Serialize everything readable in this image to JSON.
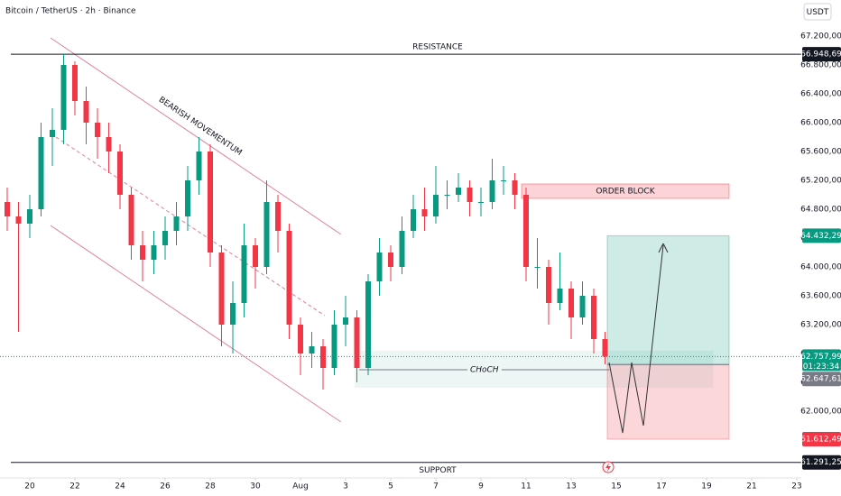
{
  "header": {
    "title": "Bitcoin / TetherUS · 2h · Binance",
    "currency": "USDT"
  },
  "chart_data": {
    "type": "candlestick",
    "x": [
      19,
      19.5,
      20,
      20.5,
      21,
      21.5,
      22,
      22.5,
      23,
      23.5,
      24,
      24.5,
      25,
      25.5,
      26,
      26.5,
      27,
      27.5,
      28,
      28.5,
      29,
      29.5,
      30,
      30.5,
      31,
      31.5,
      32,
      32.5,
      33,
      33.5,
      34,
      34.5,
      35,
      35.5,
      36,
      36.5,
      37,
      37.5,
      38,
      38.5,
      39,
      39.5,
      40,
      40.5,
      41,
      41.5,
      42,
      42.5,
      43,
      43.5,
      44,
      44.5,
      45,
      45.5
    ],
    "open": [
      64900,
      64700,
      64600,
      64800,
      65800,
      65900,
      66800,
      66300,
      66000,
      65800,
      65600,
      65000,
      64300,
      64100,
      64300,
      64500,
      64700,
      65200,
      65600,
      64200,
      63200,
      63500,
      64300,
      64000,
      64900,
      64500,
      63200,
      62800,
      62900,
      62600,
      63200,
      63300,
      62600,
      63800,
      64200,
      64000,
      64500,
      64800,
      64700,
      65000,
      65000,
      65100,
      64900,
      64900,
      65200,
      65200,
      65000,
      64000,
      64000,
      63500,
      63700,
      63300,
      63600,
      63000
    ],
    "high": [
      65100,
      64900,
      65000,
      66000,
      66200,
      66950,
      66850,
      66500,
      66200,
      66000,
      65700,
      65100,
      64500,
      64500,
      64700,
      64900,
      65400,
      65800,
      65700,
      64300,
      63800,
      64600,
      64400,
      65200,
      65000,
      64600,
      63300,
      63100,
      63000,
      63400,
      63600,
      63400,
      63900,
      64400,
      64300,
      64700,
      65000,
      65100,
      65400,
      65200,
      65300,
      65200,
      65100,
      65500,
      65400,
      65300,
      65100,
      64400,
      64100,
      64200,
      63800,
      63800,
      63700,
      63100
    ],
    "low": [
      64500,
      63100,
      64400,
      64700,
      65400,
      65700,
      66100,
      65700,
      65500,
      65300,
      64800,
      64100,
      63800,
      63900,
      64100,
      64300,
      64500,
      65000,
      64000,
      62900,
      62800,
      63300,
      63700,
      63900,
      64200,
      63000,
      62500,
      62600,
      62300,
      62500,
      62900,
      62400,
      62500,
      63600,
      63800,
      63900,
      64400,
      64500,
      64600,
      64800,
      64900,
      64700,
      64700,
      64800,
      65000,
      64800,
      63800,
      63700,
      63200,
      63400,
      63000,
      63200,
      62800,
      62650
    ],
    "close": [
      64700,
      64600,
      64800,
      65800,
      65900,
      66800,
      66300,
      66000,
      65800,
      65600,
      65000,
      64300,
      64100,
      64300,
      64500,
      64700,
      65200,
      65600,
      64200,
      63200,
      63500,
      64300,
      64000,
      64900,
      64500,
      63200,
      62800,
      62900,
      62600,
      63200,
      63300,
      62600,
      63800,
      64200,
      64000,
      64500,
      64800,
      64700,
      65000,
      65000,
      65100,
      64900,
      64900,
      65200,
      65200,
      65000,
      64000,
      64000,
      63500,
      63700,
      63300,
      63600,
      63000,
      62757.99
    ],
    "up_color": "#089981",
    "down_color": "#f23645",
    "xlim": [
      18.68,
      54.2
    ],
    "xticks": [
      20,
      22,
      24,
      26,
      28,
      30,
      {
        "value": 32,
        "label": "Aug"
      },
      {
        "value": 34,
        "label": "3"
      },
      {
        "value": 36,
        "label": "5"
      },
      {
        "value": 38,
        "label": "7"
      },
      {
        "value": 40,
        "label": "9"
      },
      {
        "value": 42,
        "label": "11"
      },
      {
        "value": 44,
        "label": "13"
      },
      {
        "value": 46,
        "label": "15"
      },
      {
        "value": 48,
        "label": "17"
      },
      {
        "value": 50,
        "label": "19"
      },
      {
        "value": 52,
        "label": "21"
      },
      {
        "value": 54,
        "label": "23"
      }
    ],
    "ylim": [
      61075,
      67700
    ],
    "yticks": [
      {
        "value": 62000,
        "label": "62.000,00"
      },
      {
        "value": 62400,
        "label": "62.400,00"
      },
      {
        "value": 62800,
        "label": "62.800,00"
      },
      {
        "value": 63200,
        "label": "63.200,00"
      },
      {
        "value": 63600,
        "label": "63.600,00"
      },
      {
        "value": 64000,
        "label": "64.000,00"
      },
      {
        "value": 64400,
        "label": "64.400,00"
      },
      {
        "value": 64800,
        "label": "64.800,00"
      },
      {
        "value": 65200,
        "label": "65.200,00"
      },
      {
        "value": 65600,
        "label": "65.600,00"
      },
      {
        "value": 66000,
        "label": "66.000,00"
      },
      {
        "value": 66400,
        "label": "66.400,00"
      },
      {
        "value": 66800,
        "label": "66.800,00"
      },
      {
        "value": 67200,
        "label": "67.200,00"
      }
    ],
    "grid": false,
    "levels": [
      {
        "name": "RESISTANCE",
        "value": 66948.69,
        "label": "66.948,69"
      },
      {
        "name": "SUPPORT",
        "value": 61291.25,
        "label": "61.291,25"
      }
    ],
    "order_block": {
      "label": "ORDER BLOCK",
      "ylim": [
        64950,
        65150
      ],
      "xlim": [
        41.8,
        51
      ]
    },
    "choch": {
      "label": "CHoCH",
      "value": 62575,
      "xlim": [
        34.6,
        45.7
      ],
      "zone": [
        62325,
        62838
      ],
      "zone_xlim": [
        34.4,
        50.3
      ]
    },
    "position": {
      "xlim": [
        45.6,
        51
      ],
      "target": {
        "value": 64432.29,
        "label": "64.432,29"
      },
      "entry": {
        "value": 62647.61,
        "label": "62.647,61"
      },
      "stop": {
        "value": 61612.49,
        "label": "61.612,49"
      }
    },
    "last_price": {
      "value": 62757.99,
      "label": "62.757,99",
      "countdown": "01:23:34"
    },
    "channel_label": "BEARISH MOVEMENTUM"
  }
}
